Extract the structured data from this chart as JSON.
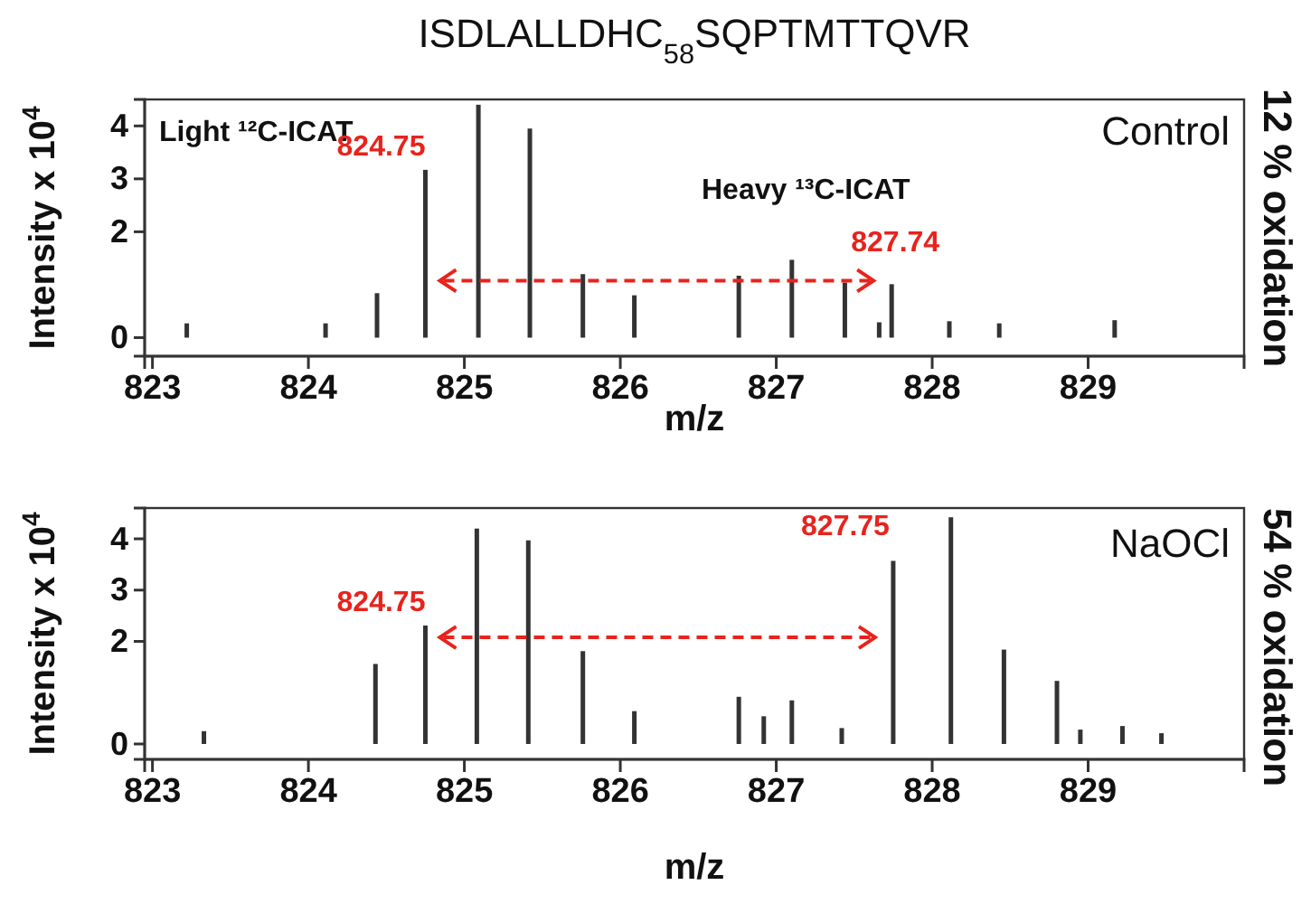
{
  "chart_data": [
    {
      "type": "bar",
      "title": "ISDLALLDHC$_{58}$SQPTMTTQVR",
      "xlabel": "m/z",
      "ylabel": "Intensity x 10$^{4}$",
      "color": "#333333",
      "x": [
        823.22,
        824.11,
        824.44,
        824.75,
        825.09,
        825.42,
        825.76,
        826.09,
        826.76,
        827.1,
        827.44,
        827.66,
        827.74,
        828.11,
        828.43,
        829.17
      ],
      "values": [
        0.27,
        0.27,
        0.84,
        3.17,
        4.4,
        3.95,
        1.2,
        0.8,
        1.17,
        1.47,
        1.04,
        0.29,
        1.01,
        0.31,
        0.27,
        0.33
      ],
      "xlim": [
        822.95,
        830
      ],
      "xticks": [
        823,
        824,
        825,
        826,
        827,
        828,
        829
      ],
      "ylim": [
        -0.35,
        4.5
      ],
      "yticks": [
        0,
        2,
        3,
        4
      ],
      "grid": false,
      "annotations": [
        "Light ¹²C-ICAT",
        "Heavy ¹³C-ICAT",
        "Control",
        "12 % oxidation",
        {
          "text": "824.75",
          "x": 824.75,
          "y": 3.17
        },
        {
          "text": "827.74",
          "x": 827.74,
          "y": 1.01
        }
      ]
    },
    {
      "type": "bar",
      "xlabel": "m/z",
      "ylabel": "Intensity x 10$^{4}$",
      "color": "#333333",
      "x": [
        823.33,
        824.43,
        824.75,
        825.08,
        825.41,
        825.76,
        826.09,
        826.76,
        826.92,
        827.1,
        827.42,
        827.75,
        828.12,
        828.46,
        828.8,
        828.95,
        829.22,
        829.47
      ],
      "values": [
        0.25,
        1.56,
        2.31,
        4.2,
        3.97,
        1.81,
        0.64,
        0.92,
        0.54,
        0.85,
        0.31,
        3.57,
        4.42,
        1.84,
        1.23,
        0.28,
        0.35,
        0.21
      ],
      "xlim": [
        822.95,
        830
      ],
      "xticks": [
        823,
        824,
        825,
        826,
        827,
        828,
        829
      ],
      "ylim": [
        -0.3,
        4.6
      ],
      "yticks": [
        0,
        2,
        3,
        4
      ],
      "grid": false,
      "annotations": [
        "NaOCl",
        "54 % oxidation",
        {
          "text": "824.75",
          "x": 824.75,
          "y": 2.31
        },
        {
          "text": "827.75",
          "x": 827.75,
          "y": 3.57
        }
      ]
    }
  ]
}
